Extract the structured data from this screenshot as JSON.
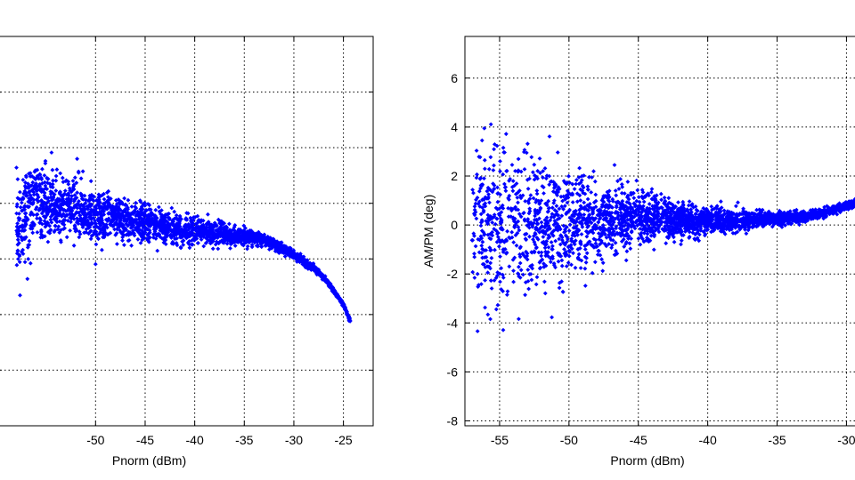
{
  "colors": {
    "marker": "#0000FF",
    "grid": "#000000",
    "axes": "#000000",
    "background": "#FFFFFF"
  },
  "chart_data": [
    {
      "type": "scatter",
      "title": "",
      "xlabel": "Pnorm (dBm)",
      "ylabel": "",
      "xlim": [
        -60,
        -22
      ],
      "ylim": [
        -0.006,
        0.012
      ],
      "x_ticks": [
        -50,
        -45,
        -40,
        -35,
        -30,
        -25
      ],
      "x_tick_labels": [
        "-50",
        "-45",
        "-40",
        "-35",
        "-30",
        "-25"
      ],
      "y_ticks": [],
      "y_tick_labels": [],
      "grid": true,
      "legend": "none",
      "marker": "diamond",
      "color": "#0000FF",
      "series": [
        {
          "description_free": true,
          "points": [
            [
              -58,
              0.0032
            ],
            [
              -56,
              0.0045
            ],
            [
              -54,
              0.004
            ],
            [
              -52,
              0.0042
            ],
            [
              -50,
              0.0035
            ],
            [
              -48,
              0.0036
            ],
            [
              -46,
              0.0034
            ],
            [
              -44,
              0.0033
            ],
            [
              -42,
              0.0031
            ],
            [
              -40,
              0.003
            ],
            [
              -38,
              0.0029
            ],
            [
              -36,
              0.0028
            ],
            [
              -34,
              0.0027
            ],
            [
              -32,
              0.0024
            ],
            [
              -30,
              0.0019
            ],
            [
              -28,
              0.0013
            ],
            [
              -26.5,
              0.0006
            ],
            [
              -25,
              -0.0004
            ],
            [
              -24.3,
              -0.0012
            ]
          ],
          "spread": [
            0.002,
            0.0018,
            0.0016,
            0.0014,
            0.0012,
            0.001,
            0.0009,
            0.0008,
            0.0007,
            0.0006,
            0.0005,
            0.0004,
            0.0003,
            0.00025,
            0.0002,
            0.00015,
            0.0001,
            0.0001,
            0.0001
          ]
        }
      ]
    },
    {
      "type": "scatter",
      "title": "",
      "xlabel": "Pnorm (dBm)",
      "ylabel": "AM/PM (deg)",
      "xlim": [
        -57.5,
        -29
      ],
      "ylim": [
        -8.2,
        7.7
      ],
      "x_ticks": [
        -55,
        -50,
        -45,
        -40,
        -35,
        -30
      ],
      "x_tick_labels": [
        "-55",
        "-50",
        "-45",
        "-40",
        "-35",
        "-30"
      ],
      "y_ticks": [
        -8,
        -6,
        -4,
        -2,
        0,
        2,
        4,
        6
      ],
      "y_tick_labels": [
        "-8",
        "-6",
        "-4",
        "-2",
        "0",
        "2",
        "4",
        "6"
      ],
      "grid": true,
      "legend": "none",
      "marker": "diamond",
      "color": "#0000FF",
      "series": [
        {
          "points": [
            [
              -57,
              0.2
            ],
            [
              -55,
              0.0
            ],
            [
              -53,
              0.0
            ],
            [
              -51,
              0.1
            ],
            [
              -49,
              0.1
            ],
            [
              -47,
              0.2
            ],
            [
              -45,
              0.25
            ],
            [
              -43,
              0.2
            ],
            [
              -41,
              0.15
            ],
            [
              -39,
              0.15
            ],
            [
              -37,
              0.2
            ],
            [
              -35,
              0.25
            ],
            [
              -33,
              0.35
            ],
            [
              -31,
              0.6
            ],
            [
              -29,
              0.95
            ]
          ],
          "spread": [
            3.5,
            3.4,
            3.0,
            2.4,
            1.9,
            1.4,
            1.1,
            0.8,
            0.6,
            0.45,
            0.35,
            0.25,
            0.2,
            0.15,
            0.15
          ]
        }
      ]
    }
  ]
}
